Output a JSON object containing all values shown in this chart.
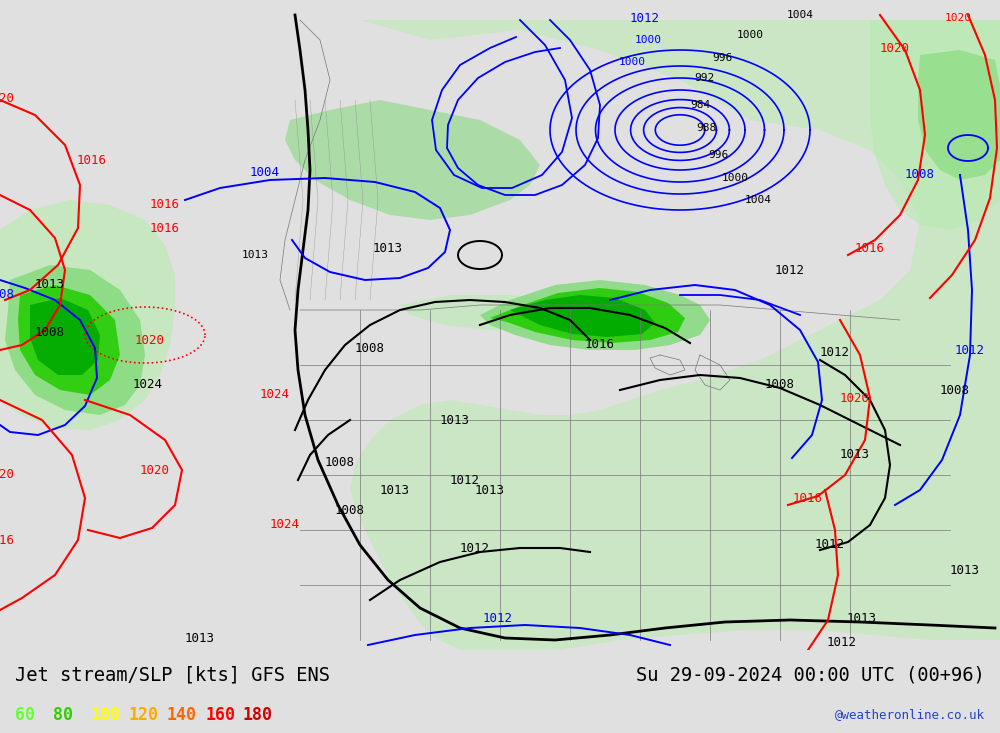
{
  "title_left": "Jet stream/SLP [kts] GFS ENS",
  "title_right": "Su 29-09-2024 00:00 UTC (00+96)",
  "credit": "@weatheronline.co.uk",
  "legend_values": [
    "60",
    "80",
    "100",
    "120",
    "140",
    "160",
    "180"
  ],
  "legend_colors": [
    "#66ff33",
    "#33cc00",
    "#ffff00",
    "#ffaa00",
    "#ff6600",
    "#ff0000",
    "#cc0000"
  ],
  "bg_color": "#e0e0e0",
  "map_bg": "#eeeeee",
  "bar_bg": "#cccccc",
  "light_green": "#b8ebb0",
  "mid_green": "#78d870",
  "dark_green": "#00aa00",
  "bright_green": "#22cc00",
  "font_family": "monospace"
}
